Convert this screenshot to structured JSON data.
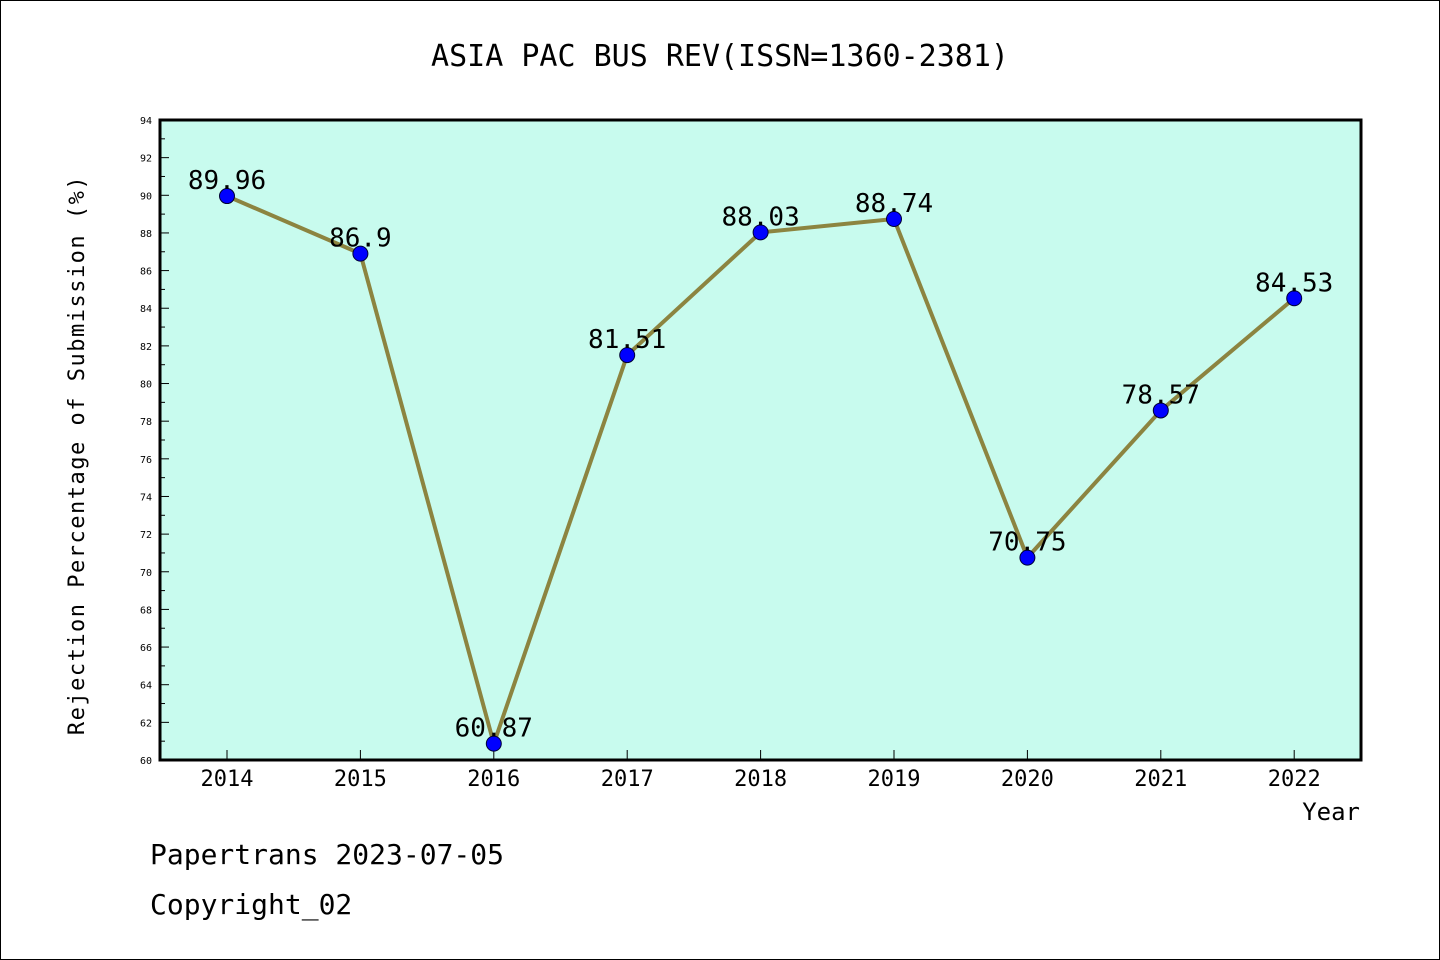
{
  "chart_data": {
    "type": "line",
    "title": "ASIA PAC BUS REV(ISSN=1360-2381)",
    "xlabel": "Year",
    "ylabel": "Rejection Percentage of Submission (%)",
    "categories": [
      "2014",
      "2015",
      "2016",
      "2017",
      "2018",
      "2019",
      "2020",
      "2021",
      "2022"
    ],
    "values": [
      89.96,
      86.9,
      60.87,
      81.51,
      88.03,
      88.74,
      70.75,
      78.57,
      84.53
    ],
    "data_labels": [
      "89.96",
      "86.9",
      "60.87",
      "81.51",
      "88.03",
      "88.74",
      "70.75",
      "78.57",
      "84.53"
    ],
    "ylim": [
      60,
      94
    ],
    "yticks": [
      "60",
      "62",
      "64",
      "66",
      "68",
      "70",
      "72",
      "74",
      "76",
      "78",
      "80",
      "82",
      "84",
      "86",
      "88",
      "90",
      "92",
      "94"
    ],
    "grid": false,
    "colors": {
      "plot_background": "#c8fbee",
      "line": "#8c8440",
      "marker": "#0000ff",
      "axis": "#000000"
    }
  },
  "footer": {
    "line1": "Papertrans 2023-07-05",
    "line2": "Copyright_02"
  }
}
